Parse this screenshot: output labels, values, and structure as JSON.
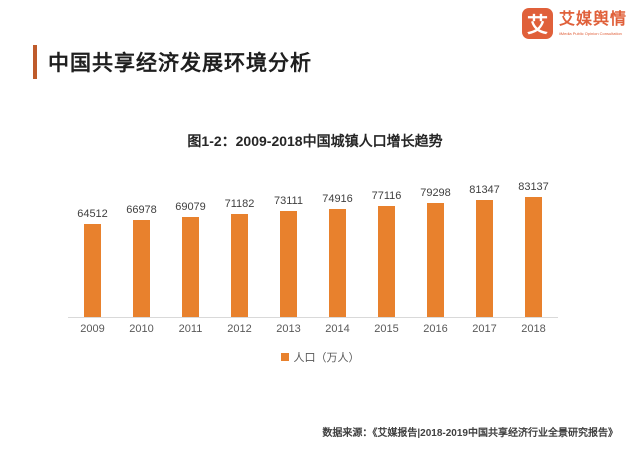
{
  "header": {
    "title": "中国共享经济发展环境分析"
  },
  "logo": {
    "glyph": "艾",
    "name": "艾媒舆情",
    "subtitle": "iiMedia Public Opinion Consultation"
  },
  "colors": {
    "accent": "#BF5B2B",
    "logo_orange": "#E0603A",
    "bar": "#E8812D",
    "axis_line": "#D9D9D9"
  },
  "chart_data": {
    "type": "bar",
    "title": "图1-2：2009-2018中国城镇人口增长趋势",
    "categories": [
      "2009",
      "2010",
      "2011",
      "2012",
      "2013",
      "2014",
      "2015",
      "2016",
      "2017",
      "2018"
    ],
    "values": [
      64512,
      66978,
      69079,
      71182,
      73111,
      74916,
      77116,
      79298,
      81347,
      83137
    ],
    "series_name": "人口（万人）",
    "legend": "人口（万人）",
    "xlabel": "",
    "ylabel": "",
    "grid": false,
    "data_labels": true,
    "legend_position": "bottom",
    "baseline": 0
  },
  "footer": {
    "source": "数据来源：《艾媒报告|2018-2019中国共享经济行业全景研究报告》"
  }
}
